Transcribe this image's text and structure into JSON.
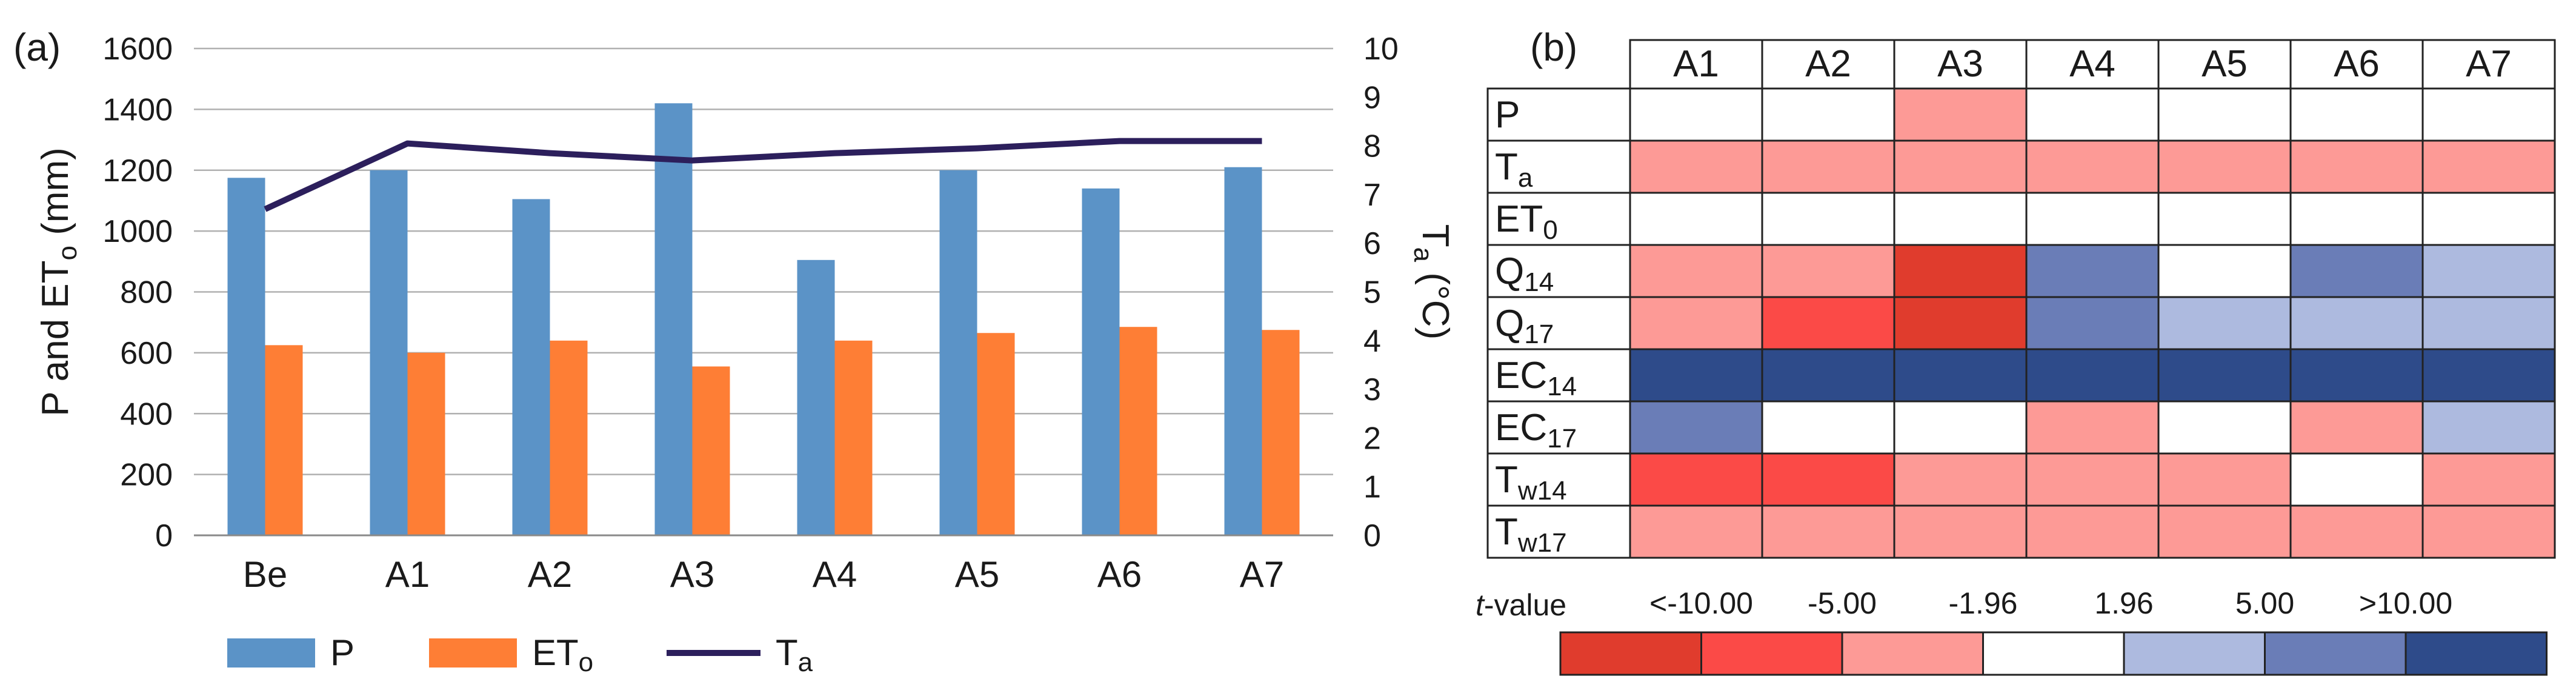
{
  "panel_a": {
    "label": "(a)",
    "left_axis": {
      "label_main": "P and ET",
      "label_sub": "o",
      "label_tail": " (mm)",
      "ticks": [
        "0",
        "200",
        "400",
        "600",
        "800",
        "1000",
        "1200",
        "1400",
        "1600"
      ]
    },
    "right_axis": {
      "label_main": "T",
      "label_sub": "a",
      "label_tail": " (°C)",
      "ticks": [
        "0",
        "1",
        "2",
        "3",
        "4",
        "5",
        "6",
        "7",
        "8",
        "9",
        "10"
      ]
    },
    "legend": {
      "p": {
        "main": "P",
        "sub": ""
      },
      "et": {
        "main": "ET",
        "sub": "o"
      },
      "ta": {
        "main": "T",
        "sub": "a"
      }
    }
  },
  "panel_b": {
    "label": "(b)",
    "columns": [
      "A1",
      "A2",
      "A3",
      "A4",
      "A5",
      "A6",
      "A7"
    ],
    "rows": [
      {
        "main": "P",
        "sub": ""
      },
      {
        "main": "T",
        "sub": "a"
      },
      {
        "main": "ET",
        "sub": "0"
      },
      {
        "main": "Q",
        "sub": "14"
      },
      {
        "main": "Q",
        "sub": "17"
      },
      {
        "main": "EC",
        "sub": "14"
      },
      {
        "main": "EC",
        "sub": "17"
      },
      {
        "main": "T",
        "sub": "w14"
      },
      {
        "main": "T",
        "sub": "w17"
      }
    ],
    "scale": {
      "title_italic": "t",
      "title_rest": "-value",
      "labels": [
        "<-10.00",
        "-5.00",
        "-1.96",
        "1.96",
        "5.00",
        ">10.00"
      ],
      "colors": [
        "#e03c2d",
        "#fb4a47",
        "#fd9a96",
        "#ffffff",
        "#adbadf",
        "#6a7db7",
        "#2e4b8a"
      ]
    }
  },
  "colors": {
    "p": "#5b93c7",
    "et": "#fe7e35",
    "ta": "#2c1f5c",
    "grid": "#b0b0b0"
  },
  "chart_data": [
    {
      "type": "bar",
      "title": "",
      "categories": [
        "Be",
        "A1",
        "A2",
        "A3",
        "A4",
        "A5",
        "A6",
        "A7"
      ],
      "series": [
        {
          "name": "P",
          "axis": "left",
          "values": [
            1175,
            1200,
            1105,
            1420,
            905,
            1200,
            1140,
            1210
          ]
        },
        {
          "name": "ETo",
          "axis": "left",
          "values": [
            625,
            600,
            640,
            555,
            640,
            665,
            685,
            675
          ]
        },
        {
          "name": "Ta",
          "type": "line",
          "axis": "right",
          "values": [
            6.7,
            8.05,
            7.85,
            7.7,
            7.85,
            7.95,
            8.1,
            8.1
          ]
        }
      ],
      "ylabel": "P and ETo (mm)",
      "ylim": [
        0,
        1600
      ],
      "y2label": "Ta (°C)",
      "y2lim": [
        0,
        10
      ],
      "grid": true,
      "legend": "bottom"
    },
    {
      "type": "heatmap",
      "title": "",
      "x": [
        "A1",
        "A2",
        "A3",
        "A4",
        "A5",
        "A6",
        "A7"
      ],
      "y": [
        "P",
        "Ta",
        "ET0",
        "Q14",
        "Q17",
        "EC14",
        "EC17",
        "Tw14",
        "Tw17"
      ],
      "category_labels": [
        "<-10.00",
        "-10.00 to -5.00",
        "-5.00 to -1.96",
        "-1.96 to 1.96",
        "1.96 to 5.00",
        "5.00 to 10.00",
        ">10.00"
      ],
      "values": [
        [
          3,
          3,
          2,
          3,
          3,
          3,
          3
        ],
        [
          2,
          2,
          2,
          2,
          2,
          2,
          2
        ],
        [
          3,
          3,
          3,
          3,
          3,
          3,
          3
        ],
        [
          2,
          2,
          0,
          5,
          3,
          5,
          4
        ],
        [
          2,
          1,
          0,
          5,
          4,
          4,
          4
        ],
        [
          6,
          6,
          6,
          6,
          6,
          6,
          6
        ],
        [
          5,
          3,
          3,
          2,
          3,
          2,
          4
        ],
        [
          1,
          1,
          2,
          2,
          2,
          3,
          2
        ],
        [
          2,
          2,
          2,
          2,
          2,
          2,
          2
        ]
      ],
      "value_encoding": "index into category_labels",
      "legend": "bottom"
    }
  ]
}
